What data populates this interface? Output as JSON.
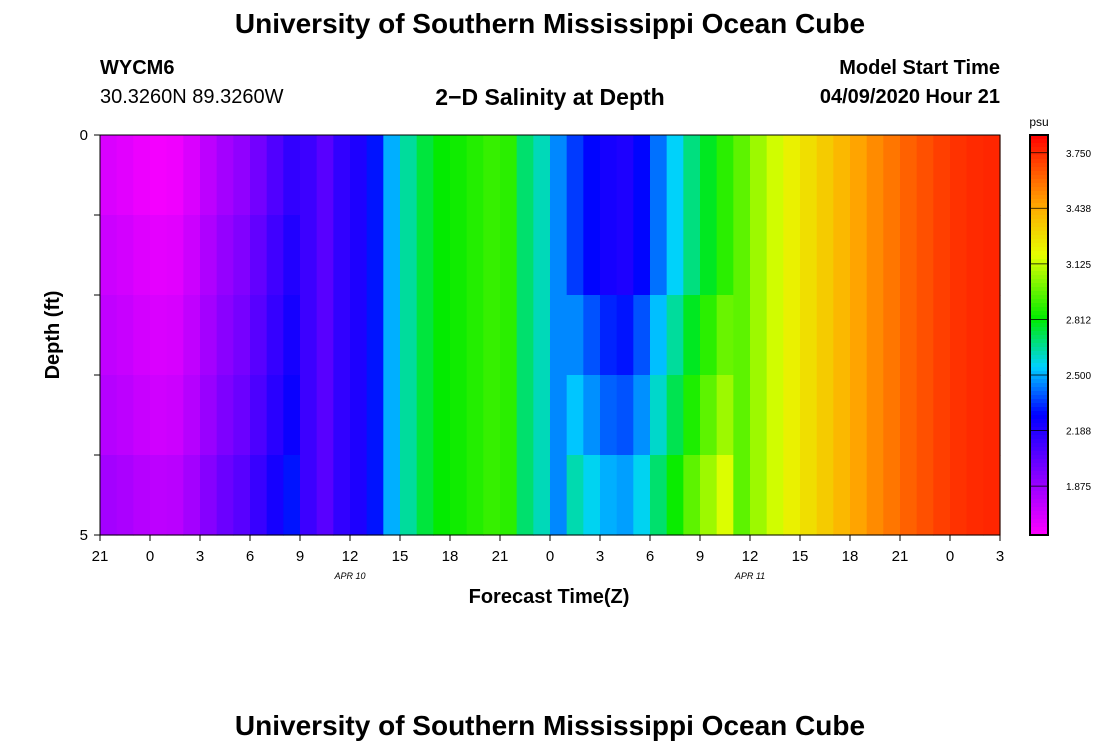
{
  "header": {
    "title": "University of Southern Mississippi Ocean Cube",
    "station_id": "WYCM6",
    "coordinates": "30.3260N 89.3260W",
    "subtitle": "2−D Salinity at Depth",
    "model_start_label": "Model Start Time",
    "model_start_value": "04/09/2020 Hour 21"
  },
  "footer": {
    "title": "University of Southern Mississippi Ocean Cube"
  },
  "colors": {
    "axis": "#000000",
    "background": "#ffffff"
  },
  "chart_data": {
    "type": "heatmap",
    "title": "2−D Salinity at Depth",
    "xlabel": "Forecast Time(Z)",
    "ylabel": "Depth (ft)",
    "x_tick_labels": [
      "21",
      "0",
      "3",
      "6",
      "9",
      "12",
      "15",
      "18",
      "21",
      "0",
      "3",
      "6",
      "9",
      "12",
      "15",
      "18",
      "21",
      "0",
      "3"
    ],
    "x_date_labels": [
      {
        "text": "APR 10",
        "after_tick_index": 5
      },
      {
        "text": "APR 11",
        "after_tick_index": 13
      }
    ],
    "y_ticks": [
      0,
      1,
      2,
      3,
      4,
      5
    ],
    "y_tick_labels": [
      "0",
      "",
      "",
      "",
      "",
      "5"
    ],
    "ylim": [
      0,
      5
    ],
    "x_start_hour": 0,
    "x_end_hour": 54,
    "time_step_hours": 1,
    "depth_layers": [
      0,
      1,
      2,
      3,
      4
    ],
    "base_profile": [
      1.7,
      1.68,
      1.65,
      1.63,
      1.64,
      1.7,
      1.78,
      1.85,
      1.9,
      1.98,
      2.07,
      2.15,
      2.12,
      2.05,
      2.15,
      2.2,
      2.3,
      2.5,
      2.65,
      2.75,
      2.82,
      2.84,
      2.87,
      2.9,
      2.88,
      2.7,
      2.62,
      2.45,
      2.35,
      2.28,
      2.22,
      2.2,
      2.28,
      2.42,
      2.55,
      2.68,
      2.78,
      2.88,
      2.96,
      3.06,
      3.14,
      3.22,
      3.28,
      3.34,
      3.4,
      3.46,
      3.52,
      3.57,
      3.62,
      3.66,
      3.7,
      3.73,
      3.75,
      3.76
    ],
    "depth_offsets": [
      {
        "start_hour": 0,
        "end_hour": 12,
        "offsets": [
          0.0,
          0.04,
          0.07,
          0.1,
          0.15
        ]
      },
      {
        "start_hour": 28,
        "end_hour": 38,
        "offsets": [
          0.0,
          0.0,
          0.1,
          0.18,
          0.28
        ]
      }
    ],
    "colorbar": {
      "unit": "psu",
      "min": 1.6,
      "max": 3.85,
      "ticks": [
        1.875,
        2.188,
        2.5,
        2.812,
        3.125,
        3.438,
        3.75
      ],
      "tick_labels": [
        "1.875",
        "2.188",
        "2.500",
        "2.812",
        "3.125",
        "3.438",
        "3.750"
      ]
    }
  }
}
